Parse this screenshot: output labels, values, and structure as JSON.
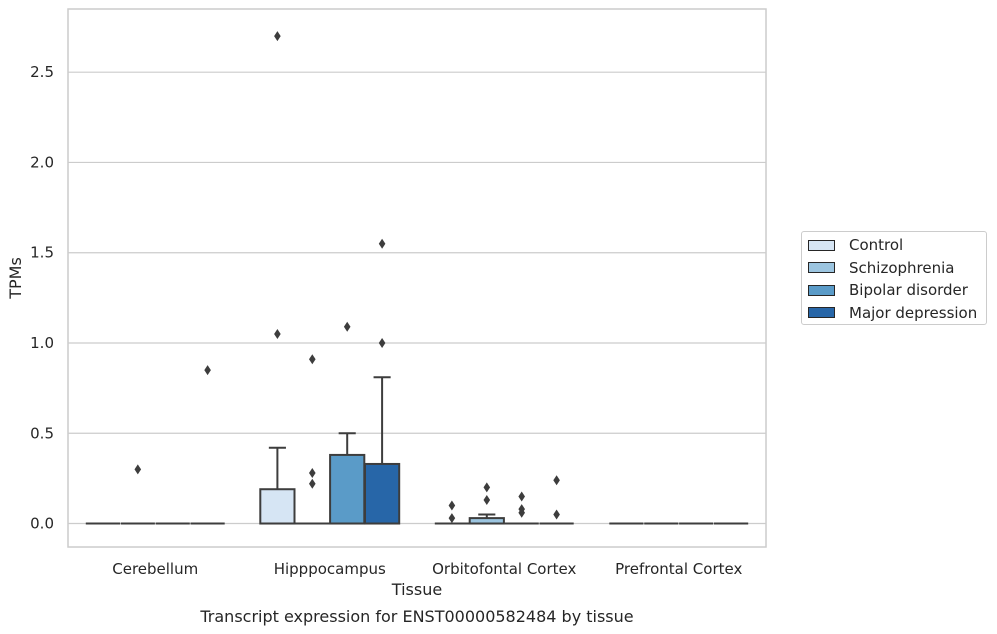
{
  "chart_data": {
    "type": "box",
    "xlabel": "Tissue",
    "ylabel": "TPMs",
    "caption": "Transcript expression for ENST00000582484 by tissue",
    "ylim": [
      -0.13,
      2.85
    ],
    "yticks": [
      "0.0",
      "0.5",
      "1.0",
      "1.5",
      "2.0",
      "2.5"
    ],
    "grid": true,
    "legend_position": "right",
    "categories": [
      "Cerebellum",
      "Hipppocampus",
      "Orbitofontal Cortex",
      "Prefrontal Cortex"
    ],
    "series": [
      {
        "name": "Control",
        "color": "#d6e5f4",
        "boxes": [
          {
            "q1": 0,
            "median": 0,
            "q3": 0,
            "whisker_low": 0,
            "whisker_high": 0,
            "outliers": []
          },
          {
            "q1": 0,
            "median": 0,
            "q3": 0.19,
            "whisker_low": 0,
            "whisker_high": 0.42,
            "outliers": [
              2.7,
              1.05
            ]
          },
          {
            "q1": 0,
            "median": 0,
            "q3": 0,
            "whisker_low": 0,
            "whisker_high": 0,
            "outliers": [
              0.1,
              0.03
            ]
          },
          {
            "q1": 0,
            "median": 0,
            "q3": 0,
            "whisker_low": 0,
            "whisker_high": 0,
            "outliers": []
          }
        ]
      },
      {
        "name": "Schizophrenia",
        "color": "#9cc5e0",
        "boxes": [
          {
            "q1": 0,
            "median": 0,
            "q3": 0,
            "whisker_low": 0,
            "whisker_high": 0,
            "outliers": [
              0.3
            ]
          },
          {
            "q1": 0,
            "median": 0,
            "q3": 0,
            "whisker_low": 0,
            "whisker_high": 0,
            "outliers": [
              0.91,
              0.28,
              0.22
            ]
          },
          {
            "q1": 0,
            "median": 0,
            "q3": 0.03,
            "whisker_low": 0,
            "whisker_high": 0.05,
            "outliers": [
              0.2,
              0.13
            ]
          },
          {
            "q1": 0,
            "median": 0,
            "q3": 0,
            "whisker_low": 0,
            "whisker_high": 0,
            "outliers": []
          }
        ]
      },
      {
        "name": "Bipolar disorder",
        "color": "#5a9bc8",
        "boxes": [
          {
            "q1": 0,
            "median": 0,
            "q3": 0,
            "whisker_low": 0,
            "whisker_high": 0,
            "outliers": []
          },
          {
            "q1": 0,
            "median": 0,
            "q3": 0.38,
            "whisker_low": 0,
            "whisker_high": 0.5,
            "outliers": [
              1.09
            ]
          },
          {
            "q1": 0,
            "median": 0,
            "q3": 0,
            "whisker_low": 0,
            "whisker_high": 0,
            "outliers": [
              0.15,
              0.08,
              0.06
            ]
          },
          {
            "q1": 0,
            "median": 0,
            "q3": 0,
            "whisker_low": 0,
            "whisker_high": 0,
            "outliers": []
          }
        ]
      },
      {
        "name": "Major depression",
        "color": "#2766a8",
        "boxes": [
          {
            "q1": 0,
            "median": 0,
            "q3": 0,
            "whisker_low": 0,
            "whisker_high": 0,
            "outliers": [
              0.85
            ]
          },
          {
            "q1": 0,
            "median": 0,
            "q3": 0.33,
            "whisker_low": 0,
            "whisker_high": 0.81,
            "outliers": [
              1.55,
              1.0
            ]
          },
          {
            "q1": 0,
            "median": 0,
            "q3": 0,
            "whisker_low": 0,
            "whisker_high": 0,
            "outliers": [
              0.24,
              0.05
            ]
          },
          {
            "q1": 0,
            "median": 0,
            "q3": 0,
            "whisker_low": 0,
            "whisker_high": 0,
            "outliers": []
          }
        ]
      }
    ]
  }
}
